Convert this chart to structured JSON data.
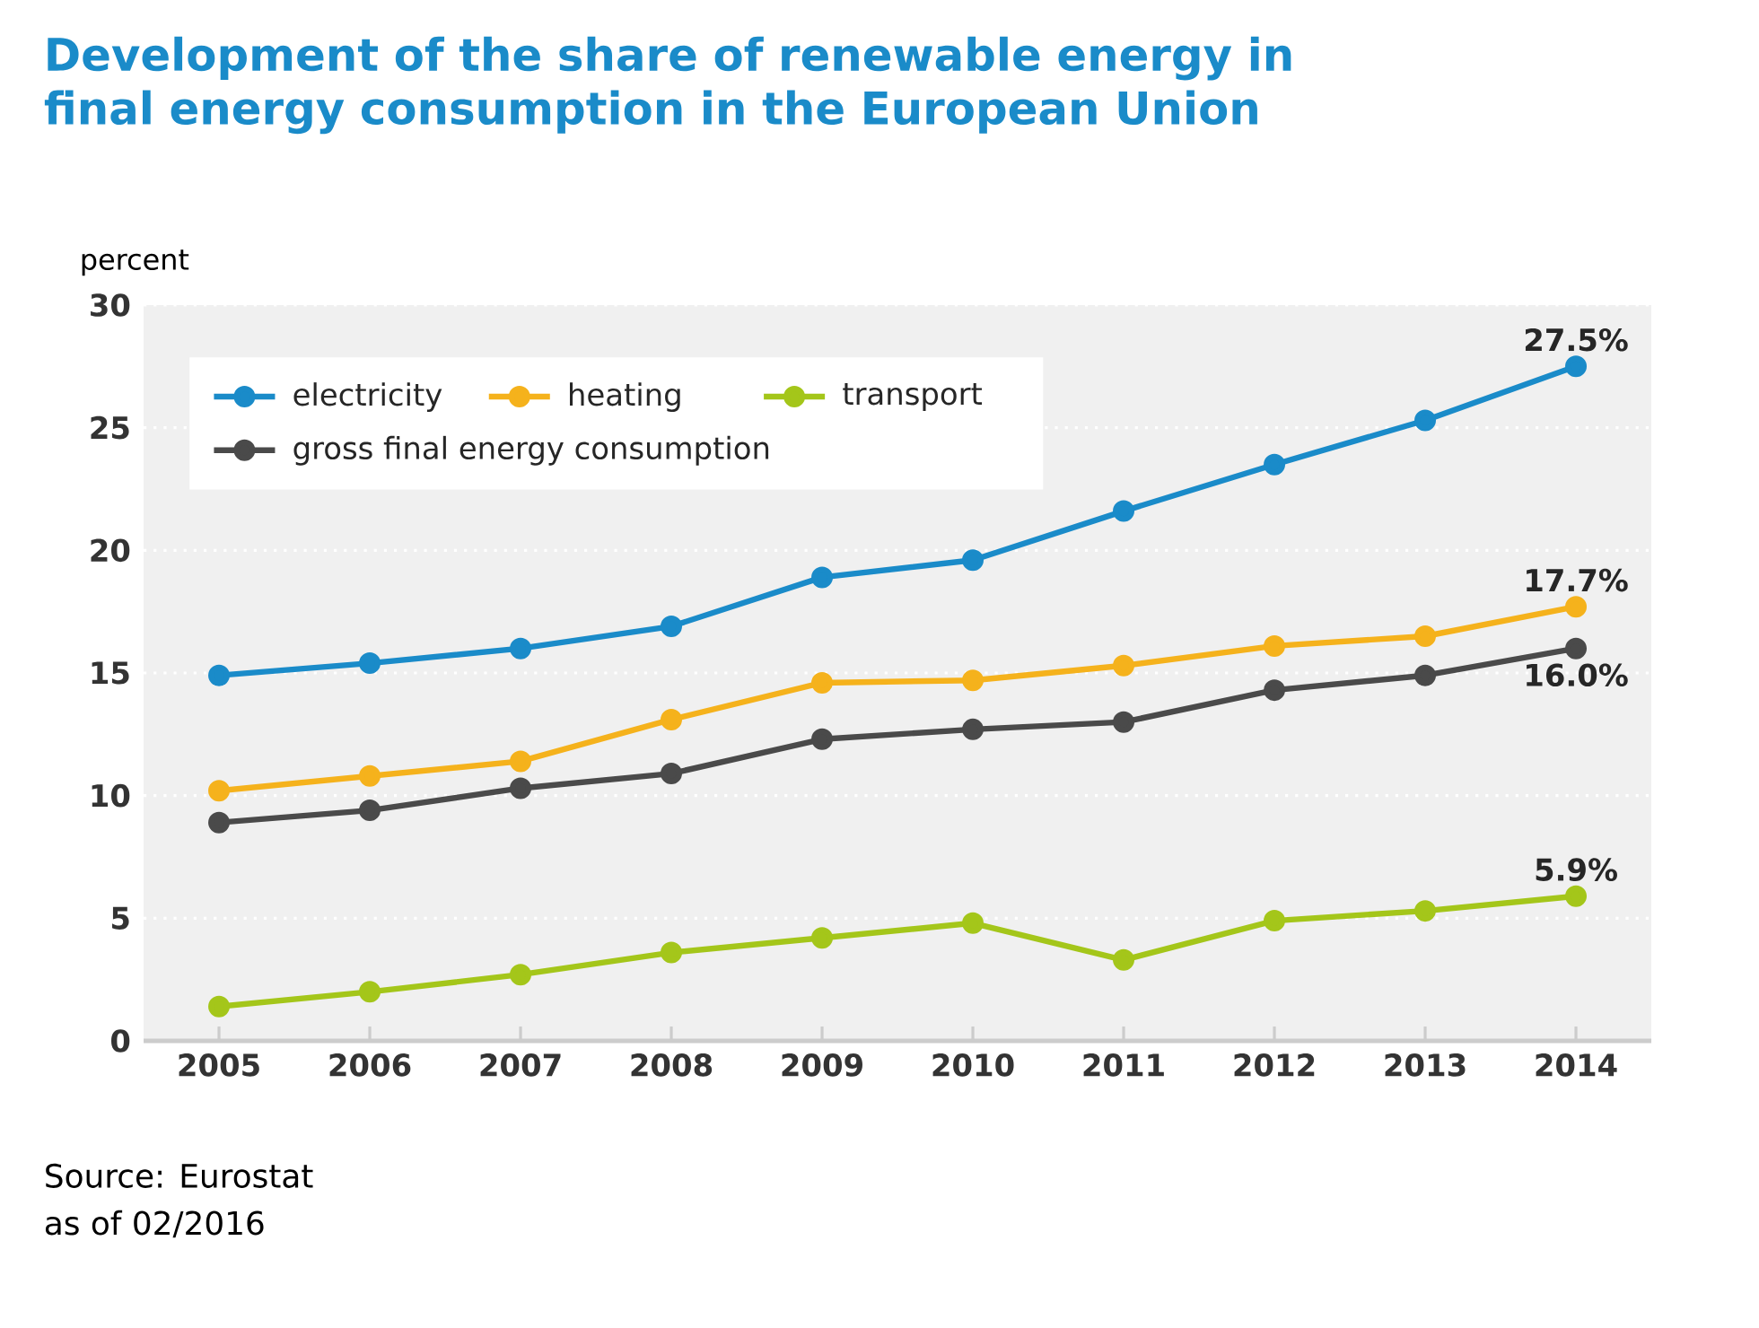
{
  "chart_data": {
    "type": "line",
    "title": "Development of the share of renewable energy in final energy consumption in the European Union",
    "ylabel": "percent",
    "categories": [
      "2005",
      "2006",
      "2007",
      "2008",
      "2009",
      "2010",
      "2011",
      "2012",
      "2013",
      "2014"
    ],
    "series": [
      {
        "name": "electricity",
        "color": "#1a8bc9",
        "values": [
          14.9,
          15.4,
          16.0,
          16.9,
          18.9,
          19.6,
          21.6,
          23.5,
          25.3,
          27.5
        ],
        "value_labels": [
          null,
          null,
          null,
          null,
          null,
          null,
          null,
          null,
          null,
          "27.5%"
        ]
      },
      {
        "name": "heating",
        "color": "#f5b21c",
        "values": [
          10.2,
          10.8,
          11.4,
          13.1,
          14.6,
          14.7,
          15.3,
          16.1,
          16.5,
          17.7
        ],
        "value_labels": [
          null,
          null,
          null,
          null,
          null,
          null,
          null,
          null,
          null,
          "17.7%"
        ]
      },
      {
        "name": "transport",
        "color": "#a4c61a",
        "values": [
          1.4,
          2.0,
          2.7,
          3.6,
          4.2,
          4.8,
          3.3,
          4.9,
          5.3,
          5.9
        ],
        "value_labels": [
          null,
          null,
          null,
          null,
          null,
          null,
          null,
          null,
          null,
          "5.9%"
        ]
      },
      {
        "name": "gross final energy consumption",
        "color": "#4a4a4a",
        "values": [
          8.9,
          9.4,
          10.3,
          10.9,
          12.3,
          12.7,
          13.0,
          14.3,
          14.9,
          16.0
        ],
        "value_labels": [
          null,
          null,
          null,
          null,
          null,
          null,
          null,
          null,
          null,
          "16.0%"
        ]
      }
    ],
    "ylim": [
      0,
      30
    ],
    "yticks": [
      0,
      5,
      10,
      15,
      20,
      25,
      30
    ],
    "grid": "y",
    "legend": "top left",
    "marker": "circle",
    "line_style": "solid",
    "annotations": [
      "Source: Eurostat",
      "as of 02/2016"
    ]
  }
}
